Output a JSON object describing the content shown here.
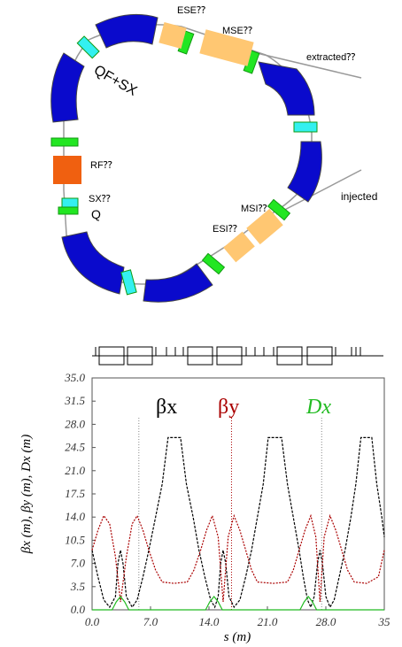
{
  "ring": {
    "labels": {
      "ese": "ESE⁇",
      "mse": "MSE⁇",
      "extracted": "extracted⁇",
      "qf_sx": "QF+SX",
      "rf": "RF⁇",
      "sx": "SX⁇",
      "q": "Q",
      "injected": "injected",
      "msi": "MSI⁇",
      "esi": "ESI⁇"
    },
    "colors": {
      "dipole": "#0a0acc",
      "quad": "#22e622",
      "sextupole": "#33f0f0",
      "septum": "#ffc772",
      "rf": "#f06010",
      "line": "#999999"
    }
  },
  "chart_data": {
    "type": "line",
    "ylabel": "βx (m), βy (m), Dx (m)",
    "xlabel": "s (m)",
    "xlim": [
      0,
      35
    ],
    "ylim": [
      0,
      35
    ],
    "xticks": [
      "0.0",
      "7.0",
      "14.0",
      "21.0",
      "28.0",
      "35"
    ],
    "yticks": [
      "0.0",
      "3.5",
      "7.0",
      "10.5",
      "14.0",
      "17.5",
      "21.0",
      "24.5",
      "28.0",
      "31.5",
      "35.0"
    ],
    "legend": [
      {
        "name": "βx",
        "color": "#000000"
      },
      {
        "name": "βy",
        "color": "#aa0000"
      },
      {
        "name": "Dx",
        "color": "#22bb22"
      }
    ],
    "series": [
      {
        "name": "βx",
        "color": "#000000",
        "points": [
          [
            0,
            9
          ],
          [
            0.7,
            5
          ],
          [
            1.4,
            1.5
          ],
          [
            2.1,
            0.4
          ],
          [
            2.8,
            2
          ],
          [
            3.1,
            7
          ],
          [
            3.4,
            9
          ],
          [
            3.7,
            7
          ],
          [
            4.1,
            2
          ],
          [
            4.8,
            0.4
          ],
          [
            5.4,
            1.5
          ],
          [
            6.1,
            5
          ],
          [
            6.8,
            9
          ],
          [
            7.6,
            14
          ],
          [
            8.4,
            19
          ],
          [
            9.1,
            26
          ],
          [
            10.6,
            26
          ],
          [
            11.3,
            19
          ],
          [
            12.1,
            14
          ],
          [
            12.8,
            9
          ],
          [
            13.5,
            5
          ],
          [
            14.2,
            1.5
          ],
          [
            14.7,
            0.4
          ],
          [
            15.1,
            2
          ],
          [
            15.4,
            7
          ],
          [
            15.7,
            9
          ],
          [
            16,
            7
          ],
          [
            16.4,
            2
          ],
          [
            17,
            0.4
          ],
          [
            17.7,
            1.5
          ],
          [
            18.4,
            5
          ],
          [
            19.1,
            9
          ],
          [
            19.8,
            14
          ],
          [
            20.5,
            19
          ],
          [
            21.1,
            26
          ],
          [
            22.7,
            26
          ],
          [
            23.4,
            19
          ],
          [
            24.1,
            14
          ],
          [
            24.8,
            9
          ],
          [
            25.3,
            5
          ],
          [
            25.8,
            1.5
          ],
          [
            26.2,
            0.4
          ],
          [
            26.6,
            2
          ],
          [
            27,
            7
          ],
          [
            27.3,
            9
          ],
          [
            27.6,
            7
          ],
          [
            28,
            2
          ],
          [
            28.5,
            0.4
          ],
          [
            29,
            1.5
          ],
          [
            29.6,
            5
          ],
          [
            30.3,
            9
          ],
          [
            31,
            14
          ],
          [
            31.6,
            19
          ],
          [
            32.2,
            26
          ],
          [
            33.5,
            26
          ],
          [
            34.1,
            19
          ],
          [
            34.7,
            14
          ],
          [
            35,
            11
          ]
        ]
      },
      {
        "name": "βy",
        "color": "#aa0000",
        "points": [
          [
            0,
            9
          ],
          [
            0.7,
            12
          ],
          [
            1.4,
            14.2
          ],
          [
            2.1,
            13
          ],
          [
            2.8,
            8
          ],
          [
            3.4,
            1.2
          ],
          [
            4.1,
            8
          ],
          [
            4.8,
            13
          ],
          [
            5.4,
            14.2
          ],
          [
            6.1,
            12
          ],
          [
            6.8,
            9
          ],
          [
            7.6,
            6
          ],
          [
            8.4,
            4.2
          ],
          [
            9.8,
            4
          ],
          [
            11.4,
            4.2
          ],
          [
            12.2,
            6
          ],
          [
            13,
            9
          ],
          [
            13.7,
            12
          ],
          [
            14.4,
            14.2
          ],
          [
            15.1,
            11
          ],
          [
            15.7,
            1.2
          ],
          [
            16.3,
            11
          ],
          [
            17,
            14.2
          ],
          [
            17.7,
            12
          ],
          [
            18.4,
            9
          ],
          [
            19.1,
            6
          ],
          [
            19.8,
            4.2
          ],
          [
            21.7,
            4
          ],
          [
            23.4,
            4.2
          ],
          [
            24.1,
            6
          ],
          [
            24.8,
            9
          ],
          [
            25.5,
            12
          ],
          [
            26.2,
            14.2
          ],
          [
            26.8,
            11
          ],
          [
            27.3,
            1.2
          ],
          [
            27.8,
            11
          ],
          [
            28.5,
            14.2
          ],
          [
            29.2,
            12
          ],
          [
            29.9,
            9
          ],
          [
            30.6,
            6
          ],
          [
            31.4,
            4.2
          ],
          [
            32.9,
            4
          ],
          [
            34.3,
            5
          ],
          [
            35,
            9
          ]
        ]
      },
      {
        "name": "Dx",
        "color": "#22bb22",
        "points": [
          [
            0,
            0
          ],
          [
            2.4,
            0
          ],
          [
            2.9,
            1.2
          ],
          [
            3.4,
            2.0
          ],
          [
            3.9,
            1.2
          ],
          [
            4.4,
            0
          ],
          [
            13.6,
            0
          ],
          [
            14.1,
            1.2
          ],
          [
            14.6,
            2.0
          ],
          [
            15.1,
            1.2
          ],
          [
            15.6,
            0
          ],
          [
            24.9,
            0
          ],
          [
            25.4,
            1.2
          ],
          [
            25.9,
            2.0
          ],
          [
            26.4,
            1.2
          ],
          [
            26.9,
            0
          ],
          [
            35,
            0
          ]
        ]
      }
    ],
    "markers": [
      {
        "x": 5.6,
        "color": "#888888"
      },
      {
        "x": 16.7,
        "color": "#aa0000"
      },
      {
        "x": 27.5,
        "color": "#888888"
      }
    ]
  }
}
